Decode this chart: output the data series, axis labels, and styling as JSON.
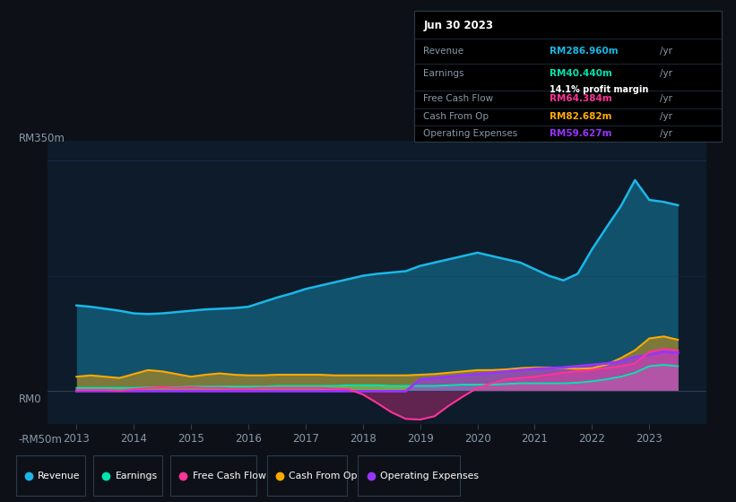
{
  "bg_color": "#0d1117",
  "plot_bg_color": "#0d1b2a",
  "text_color": "#8899aa",
  "series_colors": {
    "revenue": "#1ab8e8",
    "earnings": "#00e5b0",
    "fcf": "#ff3399",
    "cashfromop": "#ffaa00",
    "opex": "#9933ff"
  },
  "info_box": {
    "date": "Jun 30 2023",
    "revenue_val": "RM286.960m",
    "earnings_val": "RM40.440m",
    "margin": "14.1%",
    "fcf_val": "RM64.384m",
    "cashfromop_val": "RM82.682m",
    "opex_val": "RM59.627m"
  },
  "ylim": [
    -50,
    380
  ],
  "xlim": [
    2012.5,
    2024.0
  ],
  "xtick_labels": [
    "2013",
    "2014",
    "2015",
    "2016",
    "2017",
    "2018",
    "2019",
    "2020",
    "2021",
    "2022",
    "2023"
  ],
  "years": [
    2013.0,
    2013.25,
    2013.5,
    2013.75,
    2014.0,
    2014.25,
    2014.5,
    2014.75,
    2015.0,
    2015.25,
    2015.5,
    2015.75,
    2016.0,
    2016.25,
    2016.5,
    2016.75,
    2017.0,
    2017.25,
    2017.5,
    2017.75,
    2018.0,
    2018.25,
    2018.5,
    2018.75,
    2019.0,
    2019.25,
    2019.5,
    2019.75,
    2020.0,
    2020.25,
    2020.5,
    2020.75,
    2021.0,
    2021.25,
    2021.5,
    2021.75,
    2022.0,
    2022.25,
    2022.5,
    2022.75,
    2023.0,
    2023.25,
    2023.5
  ],
  "revenue": [
    130,
    128,
    125,
    122,
    118,
    117,
    118,
    120,
    122,
    124,
    125,
    126,
    128,
    135,
    142,
    148,
    155,
    160,
    165,
    170,
    175,
    178,
    180,
    182,
    190,
    195,
    200,
    205,
    210,
    205,
    200,
    195,
    185,
    175,
    168,
    178,
    215,
    248,
    280,
    320,
    290,
    287,
    282
  ],
  "earnings": [
    5,
    5,
    5,
    5,
    5,
    6,
    6,
    6,
    7,
    7,
    7,
    7,
    7,
    7,
    8,
    8,
    8,
    8,
    8,
    9,
    9,
    9,
    8,
    8,
    8,
    8,
    9,
    10,
    10,
    10,
    11,
    12,
    12,
    12,
    12,
    13,
    15,
    18,
    22,
    28,
    38,
    40,
    38
  ],
  "fcf": [
    2,
    2,
    2,
    1,
    3,
    5,
    6,
    5,
    6,
    5,
    5,
    4,
    4,
    5,
    5,
    5,
    5,
    5,
    4,
    3,
    -5,
    -18,
    -32,
    -42,
    -43,
    -38,
    -22,
    -8,
    5,
    12,
    18,
    20,
    22,
    25,
    28,
    30,
    32,
    35,
    38,
    42,
    60,
    64,
    62
  ],
  "cashfromop": [
    22,
    24,
    22,
    20,
    26,
    32,
    30,
    26,
    22,
    25,
    27,
    25,
    24,
    24,
    25,
    25,
    25,
    25,
    24,
    24,
    24,
    24,
    24,
    24,
    25,
    26,
    28,
    30,
    32,
    32,
    33,
    35,
    36,
    36,
    35,
    34,
    35,
    40,
    50,
    62,
    80,
    83,
    78
  ],
  "opex": [
    0,
    0,
    0,
    0,
    0,
    0,
    0,
    0,
    0,
    0,
    0,
    0,
    0,
    0,
    0,
    0,
    0,
    0,
    0,
    0,
    0,
    0,
    0,
    0,
    18,
    20,
    22,
    24,
    26,
    28,
    30,
    32,
    34,
    35,
    36,
    38,
    40,
    42,
    45,
    52,
    55,
    60,
    58
  ]
}
